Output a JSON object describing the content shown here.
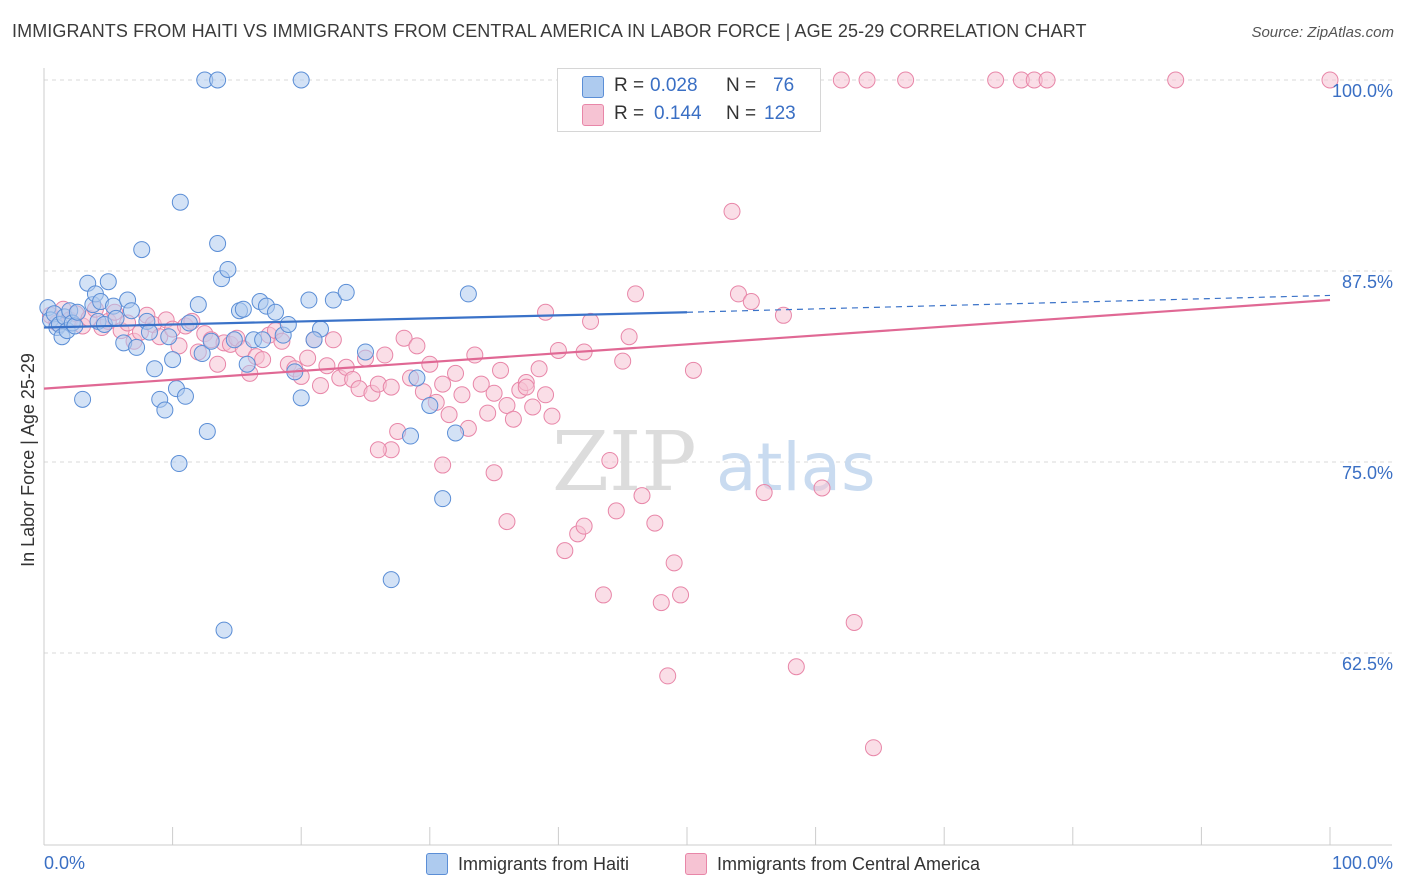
{
  "header": {
    "title": "IMMIGRANTS FROM HAITI VS IMMIGRANTS FROM CENTRAL AMERICA IN LABOR FORCE | AGE 25-29 CORRELATION CHART",
    "source": "Source: ZipAtlas.com"
  },
  "stats": {
    "row1": {
      "r_label": "R =",
      "r_value": "0.028",
      "n_label": "N =",
      "n_value": "76"
    },
    "row2": {
      "r_label": "R =",
      "r_value": "0.144",
      "n_label": "N =",
      "n_value": "123"
    }
  },
  "legend": {
    "haiti_label": "Immigrants from Haiti",
    "central_america_label": "Immigrants from Central America"
  },
  "watermark": {
    "zip": "ZIP",
    "atlas": "atlas"
  },
  "colors": {
    "haiti_fill": "#aecbef",
    "haiti_stroke": "#5b8ed6",
    "haiti_line": "#3a72c8",
    "ca_fill": "#f6c3d3",
    "ca_stroke": "#e886a8",
    "ca_line": "#e06894",
    "tick_label": "#3a6fc4",
    "grid": "#d9d9d9"
  },
  "chart_data": {
    "type": "scatter",
    "title": "IMMIGRANTS FROM HAITI VS IMMIGRANTS FROM CENTRAL AMERICA IN LABOR FORCE | AGE 25-29 CORRELATION CHART",
    "ylabel": "In Labor Force | Age 25-29",
    "xlabel": "",
    "xlim": [
      0,
      100
    ],
    "ylim": [
      51.9,
      101.9
    ],
    "x_tick_labels": [
      "0.0%",
      "100.0%"
    ],
    "y_ticks": [
      62.5,
      75.0,
      87.5,
      100.0
    ],
    "y_tick_labels": [
      "62.5%",
      "75.0%",
      "87.5%",
      "100.0%"
    ],
    "grid": true,
    "legend_position": "bottom-center",
    "series": [
      {
        "name": "Immigrants from Haiti",
        "r": 0.028,
        "n": 76,
        "trend": {
          "x_start": 0,
          "y_start": 83.8,
          "x_end": 50,
          "y_end": 84.8,
          "dashed_to_x": 100,
          "dashed_to_y": 85.9
        },
        "points": [
          [
            0.3,
            85.1
          ],
          [
            0.5,
            84.3
          ],
          [
            0.8,
            84.7
          ],
          [
            1.0,
            83.8
          ],
          [
            1.2,
            84.0
          ],
          [
            1.4,
            83.2
          ],
          [
            1.6,
            84.5
          ],
          [
            1.8,
            83.6
          ],
          [
            2.0,
            84.9
          ],
          [
            2.2,
            84.1
          ],
          [
            2.4,
            83.9
          ],
          [
            2.6,
            84.8
          ],
          [
            3.0,
            79.1
          ],
          [
            3.4,
            86.7
          ],
          [
            3.8,
            85.3
          ],
          [
            4.0,
            86.0
          ],
          [
            4.2,
            84.2
          ],
          [
            4.4,
            85.5
          ],
          [
            4.7,
            84.0
          ],
          [
            5.0,
            86.8
          ],
          [
            5.4,
            85.2
          ],
          [
            5.6,
            84.4
          ],
          [
            6.2,
            82.8
          ],
          [
            6.5,
            85.6
          ],
          [
            6.8,
            84.9
          ],
          [
            7.2,
            82.5
          ],
          [
            7.6,
            88.9
          ],
          [
            8.0,
            84.2
          ],
          [
            8.2,
            83.5
          ],
          [
            8.6,
            81.1
          ],
          [
            9.0,
            79.1
          ],
          [
            9.4,
            78.4
          ],
          [
            9.7,
            83.2
          ],
          [
            10.0,
            81.7
          ],
          [
            10.3,
            79.8
          ],
          [
            10.6,
            92.0
          ],
          [
            11.0,
            79.3
          ],
          [
            11.3,
            84.1
          ],
          [
            12.0,
            85.3
          ],
          [
            12.3,
            82.1
          ],
          [
            12.7,
            77.0
          ],
          [
            13.0,
            82.9
          ],
          [
            13.5,
            89.3
          ],
          [
            13.8,
            87.0
          ],
          [
            14.3,
            87.6
          ],
          [
            14.8,
            83.0
          ],
          [
            15.2,
            84.9
          ],
          [
            15.8,
            81.4
          ],
          [
            16.3,
            83.0
          ],
          [
            16.8,
            85.5
          ],
          [
            17.3,
            85.2
          ],
          [
            18.0,
            84.8
          ],
          [
            18.6,
            83.3
          ],
          [
            19.0,
            84.0
          ],
          [
            19.5,
            80.9
          ],
          [
            20.0,
            79.2
          ],
          [
            20.6,
            85.6
          ],
          [
            21.5,
            83.7
          ],
          [
            22.5,
            85.6
          ],
          [
            23.5,
            86.1
          ],
          [
            25.0,
            82.2
          ],
          [
            28.5,
            76.7
          ],
          [
            29.0,
            80.5
          ],
          [
            30.0,
            78.7
          ],
          [
            31.0,
            72.6
          ],
          [
            32.0,
            76.9
          ],
          [
            33.0,
            86.0
          ],
          [
            10.5,
            74.9
          ],
          [
            14.0,
            64.0
          ],
          [
            21.0,
            83.0
          ],
          [
            17.0,
            83.0
          ],
          [
            27.0,
            67.3
          ],
          [
            12.5,
            100.0
          ],
          [
            13.5,
            100.0
          ],
          [
            20.0,
            100.0
          ],
          [
            15.5,
            85.0
          ]
        ]
      },
      {
        "name": "Immigrants from Central America",
        "r": 0.144,
        "n": 123,
        "trend": {
          "x_start": 0,
          "y_start": 79.8,
          "x_end": 100,
          "y_end": 85.6
        },
        "points": [
          [
            0.5,
            84.6
          ],
          [
            1.0,
            84.1
          ],
          [
            1.5,
            85.0
          ],
          [
            2.0,
            84.3
          ],
          [
            2.5,
            84.7
          ],
          [
            3.0,
            83.9
          ],
          [
            3.5,
            84.4
          ],
          [
            4.0,
            85.0
          ],
          [
            4.5,
            83.8
          ],
          [
            5.0,
            84.2
          ],
          [
            5.5,
            84.8
          ],
          [
            6.0,
            83.6
          ],
          [
            6.5,
            84.1
          ],
          [
            7.0,
            82.9
          ],
          [
            7.5,
            83.5
          ],
          [
            8.0,
            84.6
          ],
          [
            8.5,
            84.0
          ],
          [
            9.0,
            83.2
          ],
          [
            9.5,
            84.3
          ],
          [
            10.0,
            83.7
          ],
          [
            10.5,
            82.6
          ],
          [
            11.0,
            83.9
          ],
          [
            11.5,
            84.2
          ],
          [
            12.0,
            82.2
          ],
          [
            12.5,
            83.4
          ],
          [
            13.0,
            83.0
          ],
          [
            13.5,
            81.4
          ],
          [
            14.0,
            82.8
          ],
          [
            14.5,
            82.7
          ],
          [
            15.0,
            83.1
          ],
          [
            15.5,
            82.4
          ],
          [
            16.0,
            80.8
          ],
          [
            16.5,
            81.9
          ],
          [
            17.0,
            81.7
          ],
          [
            17.5,
            83.3
          ],
          [
            18.0,
            83.6
          ],
          [
            18.5,
            82.9
          ],
          [
            19.0,
            81.4
          ],
          [
            19.5,
            81.1
          ],
          [
            20.0,
            80.6
          ],
          [
            20.5,
            81.8
          ],
          [
            21.0,
            83.0
          ],
          [
            21.5,
            80.0
          ],
          [
            22.0,
            81.3
          ],
          [
            22.5,
            83.0
          ],
          [
            23.0,
            80.5
          ],
          [
            23.5,
            81.2
          ],
          [
            24.0,
            80.4
          ],
          [
            24.5,
            79.8
          ],
          [
            25.0,
            81.8
          ],
          [
            25.5,
            79.5
          ],
          [
            26.0,
            80.1
          ],
          [
            26.5,
            82.0
          ],
          [
            27.0,
            79.9
          ],
          [
            27.5,
            77.0
          ],
          [
            28.0,
            83.1
          ],
          [
            28.5,
            80.5
          ],
          [
            29.0,
            82.6
          ],
          [
            29.5,
            79.6
          ],
          [
            30.0,
            81.4
          ],
          [
            30.5,
            78.9
          ],
          [
            31.0,
            80.1
          ],
          [
            31.5,
            78.1
          ],
          [
            32.0,
            80.8
          ],
          [
            32.5,
            79.4
          ],
          [
            33.0,
            77.2
          ],
          [
            33.5,
            82.0
          ],
          [
            34.0,
            80.1
          ],
          [
            34.5,
            78.2
          ],
          [
            35.0,
            79.5
          ],
          [
            35.5,
            81.0
          ],
          [
            36.0,
            78.7
          ],
          [
            36.5,
            77.8
          ],
          [
            37.0,
            79.7
          ],
          [
            37.5,
            80.2
          ],
          [
            38.0,
            78.6
          ],
          [
            38.5,
            81.1
          ],
          [
            39.0,
            79.4
          ],
          [
            39.5,
            78.0
          ],
          [
            40.0,
            82.3
          ],
          [
            27.0,
            75.8
          ],
          [
            31.0,
            74.8
          ],
          [
            35.0,
            74.3
          ],
          [
            36.0,
            71.1
          ],
          [
            39.0,
            84.8
          ],
          [
            40.5,
            69.2
          ],
          [
            41.5,
            70.3
          ],
          [
            42.0,
            70.8
          ],
          [
            42.5,
            84.2
          ],
          [
            43.5,
            66.3
          ],
          [
            44.0,
            75.1
          ],
          [
            44.5,
            71.8
          ],
          [
            45.5,
            83.2
          ],
          [
            46.5,
            72.8
          ],
          [
            47.5,
            71.0
          ],
          [
            48.0,
            65.8
          ],
          [
            48.5,
            61.0
          ],
          [
            49.0,
            68.4
          ],
          [
            49.5,
            66.3
          ],
          [
            50.5,
            81.0
          ],
          [
            53.5,
            91.4
          ],
          [
            54.0,
            86.0
          ],
          [
            55.0,
            85.5
          ],
          [
            56.0,
            73.0
          ],
          [
            57.5,
            84.6
          ],
          [
            58.5,
            61.6
          ],
          [
            60.5,
            73.3
          ],
          [
            63.0,
            64.5
          ],
          [
            64.5,
            56.3
          ],
          [
            45.0,
            81.6
          ],
          [
            42.0,
            82.2
          ],
          [
            37.5,
            79.9
          ],
          [
            62.0,
            100.0
          ],
          [
            64.0,
            100.0
          ],
          [
            67.0,
            100.0
          ],
          [
            74.0,
            100.0
          ],
          [
            76.0,
            100.0
          ],
          [
            77.0,
            100.0
          ],
          [
            78.0,
            100.0
          ],
          [
            88.0,
            100.0
          ],
          [
            100.0,
            100.0
          ],
          [
            26.0,
            75.8
          ],
          [
            46.0,
            86.0
          ]
        ]
      }
    ]
  }
}
